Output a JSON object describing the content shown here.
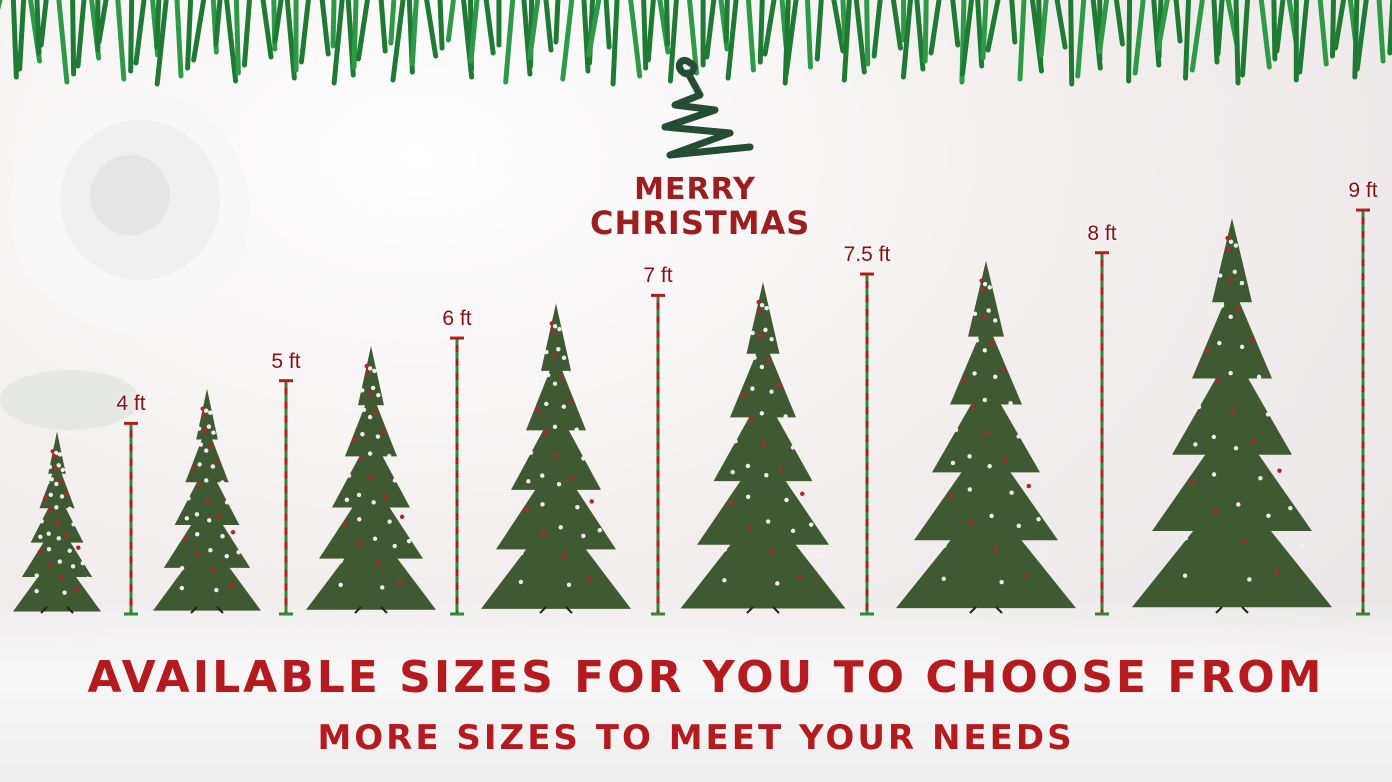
{
  "logo": {
    "line1": "MERRY",
    "line2": "CHRISTMAS"
  },
  "sizes": [
    {
      "label": "4 ft",
      "feet": 4
    },
    {
      "label": "5 ft",
      "feet": 5
    },
    {
      "label": "6 ft",
      "feet": 6
    },
    {
      "label": "7 ft",
      "feet": 7
    },
    {
      "label": "7.5 ft",
      "feet": 7.5
    },
    {
      "label": "8 ft",
      "feet": 8
    },
    {
      "label": "9 ft",
      "feet": 9
    }
  ],
  "headline": "AVAILABLE SIZES FOR YOU TO CHOOSE FROM",
  "subheadline": "MORE SIZES TO MEET YOUR NEEDS",
  "colors": {
    "red": "#b51a1e",
    "green": "#2c8a3a",
    "tree": "#3f5a32"
  }
}
